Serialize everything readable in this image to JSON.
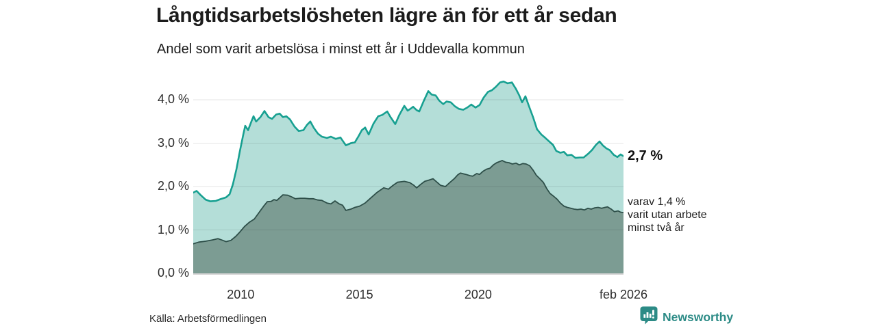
{
  "chart_data": {
    "type": "area",
    "title": "Långtidsarbetslösheten lägre än för ett år sedan",
    "subtitle": "Andel som varit arbetslösa i minst ett år i Uddevalla kommun",
    "unit": "percent",
    "legend": "none",
    "grid": true,
    "grid_color": "#e5e5e5",
    "axis_line_color": "#c2c2c2",
    "x_axis": {
      "range_years": [
        2008.0,
        2026.12
      ],
      "ticks": [
        {
          "label": "2010",
          "year": 2010
        },
        {
          "label": "2015",
          "year": 2015
        },
        {
          "label": "2020",
          "year": 2020
        },
        {
          "label": "feb 2026",
          "year": 2026.12
        }
      ]
    },
    "y_axis": {
      "range": [
        0,
        4.75
      ],
      "ticks": [
        {
          "label": "0,0 %",
          "value": 0
        },
        {
          "label": "1,0 %",
          "value": 1
        },
        {
          "label": "2,0 %",
          "value": 2
        },
        {
          "label": "3,0 %",
          "value": 3
        },
        {
          "label": "4,0 %",
          "value": 4
        }
      ]
    },
    "series": [
      {
        "name": "Arbetslösa minst ett år",
        "line_color": "#17a091",
        "fill_color": "#b4ded8",
        "line_width": 2.6,
        "latest_value": "2,7 %",
        "points": [
          [
            2008.0,
            1.86
          ],
          [
            2008.14,
            1.9
          ],
          [
            2008.32,
            1.8
          ],
          [
            2008.52,
            1.7
          ],
          [
            2008.72,
            1.66
          ],
          [
            2008.95,
            1.67
          ],
          [
            2009.15,
            1.71
          ],
          [
            2009.38,
            1.75
          ],
          [
            2009.53,
            1.82
          ],
          [
            2009.67,
            2.05
          ],
          [
            2009.82,
            2.4
          ],
          [
            2009.96,
            2.8
          ],
          [
            2010.11,
            3.2
          ],
          [
            2010.19,
            3.4
          ],
          [
            2010.31,
            3.3
          ],
          [
            2010.45,
            3.5
          ],
          [
            2010.54,
            3.62
          ],
          [
            2010.65,
            3.5
          ],
          [
            2010.83,
            3.6
          ],
          [
            2011.0,
            3.74
          ],
          [
            2011.17,
            3.6
          ],
          [
            2011.32,
            3.56
          ],
          [
            2011.49,
            3.66
          ],
          [
            2011.64,
            3.68
          ],
          [
            2011.78,
            3.6
          ],
          [
            2011.92,
            3.62
          ],
          [
            2012.07,
            3.55
          ],
          [
            2012.27,
            3.38
          ],
          [
            2012.44,
            3.28
          ],
          [
            2012.64,
            3.3
          ],
          [
            2012.79,
            3.42
          ],
          [
            2012.93,
            3.5
          ],
          [
            2013.08,
            3.35
          ],
          [
            2013.25,
            3.22
          ],
          [
            2013.42,
            3.15
          ],
          [
            2013.63,
            3.12
          ],
          [
            2013.8,
            3.15
          ],
          [
            2014.0,
            3.1
          ],
          [
            2014.2,
            3.13
          ],
          [
            2014.43,
            2.95
          ],
          [
            2014.64,
            3.0
          ],
          [
            2014.81,
            3.02
          ],
          [
            2014.95,
            3.15
          ],
          [
            2015.1,
            3.3
          ],
          [
            2015.24,
            3.36
          ],
          [
            2015.39,
            3.2
          ],
          [
            2015.59,
            3.45
          ],
          [
            2015.79,
            3.62
          ],
          [
            2015.96,
            3.65
          ],
          [
            2016.17,
            3.73
          ],
          [
            2016.31,
            3.6
          ],
          [
            2016.51,
            3.44
          ],
          [
            2016.68,
            3.65
          ],
          [
            2016.89,
            3.86
          ],
          [
            2017.03,
            3.75
          ],
          [
            2017.17,
            3.8
          ],
          [
            2017.26,
            3.84
          ],
          [
            2017.41,
            3.76
          ],
          [
            2017.52,
            3.73
          ],
          [
            2017.69,
            3.95
          ],
          [
            2017.9,
            4.2
          ],
          [
            2018.04,
            4.12
          ],
          [
            2018.21,
            4.1
          ],
          [
            2018.36,
            3.98
          ],
          [
            2018.53,
            3.9
          ],
          [
            2018.67,
            3.96
          ],
          [
            2018.85,
            3.94
          ],
          [
            2019.02,
            3.85
          ],
          [
            2019.19,
            3.79
          ],
          [
            2019.37,
            3.77
          ],
          [
            2019.54,
            3.82
          ],
          [
            2019.71,
            3.89
          ],
          [
            2019.89,
            3.82
          ],
          [
            2020.06,
            3.88
          ],
          [
            2020.23,
            4.05
          ],
          [
            2020.41,
            4.18
          ],
          [
            2020.58,
            4.22
          ],
          [
            2020.75,
            4.3
          ],
          [
            2020.92,
            4.4
          ],
          [
            2021.07,
            4.42
          ],
          [
            2021.24,
            4.38
          ],
          [
            2021.42,
            4.4
          ],
          [
            2021.59,
            4.25
          ],
          [
            2021.73,
            4.1
          ],
          [
            2021.85,
            3.94
          ],
          [
            2021.99,
            4.08
          ],
          [
            2022.14,
            3.85
          ],
          [
            2022.31,
            3.6
          ],
          [
            2022.48,
            3.32
          ],
          [
            2022.66,
            3.2
          ],
          [
            2022.83,
            3.12
          ],
          [
            2022.97,
            3.05
          ],
          [
            2023.15,
            2.96
          ],
          [
            2023.29,
            2.82
          ],
          [
            2023.46,
            2.78
          ],
          [
            2023.61,
            2.8
          ],
          [
            2023.75,
            2.72
          ],
          [
            2023.93,
            2.73
          ],
          [
            2024.1,
            2.66
          ],
          [
            2024.27,
            2.67
          ],
          [
            2024.44,
            2.67
          ],
          [
            2024.62,
            2.75
          ],
          [
            2024.79,
            2.84
          ],
          [
            2024.96,
            2.96
          ],
          [
            2025.11,
            3.04
          ],
          [
            2025.25,
            2.95
          ],
          [
            2025.4,
            2.88
          ],
          [
            2025.54,
            2.84
          ],
          [
            2025.71,
            2.73
          ],
          [
            2025.86,
            2.68
          ],
          [
            2026.0,
            2.74
          ],
          [
            2026.12,
            2.7
          ]
        ]
      },
      {
        "name": "Utan arbete minst två år",
        "line_color": "#2e4f49",
        "fill_color": "#7c9c93",
        "line_width": 1.8,
        "latest_value": "1,4 %",
        "points": [
          [
            2008.0,
            0.68
          ],
          [
            2008.23,
            0.72
          ],
          [
            2008.52,
            0.74
          ],
          [
            2008.81,
            0.77
          ],
          [
            2009.04,
            0.8
          ],
          [
            2009.24,
            0.76
          ],
          [
            2009.38,
            0.73
          ],
          [
            2009.59,
            0.76
          ],
          [
            2009.79,
            0.85
          ],
          [
            2009.96,
            0.95
          ],
          [
            2010.16,
            1.08
          ],
          [
            2010.37,
            1.18
          ],
          [
            2010.57,
            1.25
          ],
          [
            2010.77,
            1.4
          ],
          [
            2010.97,
            1.55
          ],
          [
            2011.12,
            1.65
          ],
          [
            2011.29,
            1.66
          ],
          [
            2011.4,
            1.7
          ],
          [
            2011.52,
            1.68
          ],
          [
            2011.66,
            1.75
          ],
          [
            2011.78,
            1.81
          ],
          [
            2011.98,
            1.8
          ],
          [
            2012.15,
            1.76
          ],
          [
            2012.3,
            1.72
          ],
          [
            2012.5,
            1.73
          ],
          [
            2012.7,
            1.73
          ],
          [
            2012.88,
            1.72
          ],
          [
            2013.05,
            1.72
          ],
          [
            2013.25,
            1.69
          ],
          [
            2013.42,
            1.68
          ],
          [
            2013.63,
            1.62
          ],
          [
            2013.8,
            1.6
          ],
          [
            2013.97,
            1.67
          ],
          [
            2014.15,
            1.6
          ],
          [
            2014.29,
            1.57
          ],
          [
            2014.43,
            1.45
          ],
          [
            2014.64,
            1.48
          ],
          [
            2014.81,
            1.52
          ],
          [
            2015.01,
            1.55
          ],
          [
            2015.24,
            1.62
          ],
          [
            2015.44,
            1.72
          ],
          [
            2015.73,
            1.86
          ],
          [
            2016.02,
            1.97
          ],
          [
            2016.22,
            1.94
          ],
          [
            2016.42,
            2.03
          ],
          [
            2016.6,
            2.1
          ],
          [
            2016.89,
            2.12
          ],
          [
            2017.12,
            2.09
          ],
          [
            2017.29,
            2.03
          ],
          [
            2017.41,
            1.97
          ],
          [
            2017.58,
            2.05
          ],
          [
            2017.75,
            2.12
          ],
          [
            2017.93,
            2.15
          ],
          [
            2018.1,
            2.18
          ],
          [
            2018.27,
            2.1
          ],
          [
            2018.41,
            2.03
          ],
          [
            2018.62,
            2.0
          ],
          [
            2018.82,
            2.1
          ],
          [
            2018.99,
            2.18
          ],
          [
            2019.14,
            2.27
          ],
          [
            2019.25,
            2.31
          ],
          [
            2019.48,
            2.28
          ],
          [
            2019.66,
            2.25
          ],
          [
            2019.77,
            2.24
          ],
          [
            2019.94,
            2.3
          ],
          [
            2020.06,
            2.28
          ],
          [
            2020.2,
            2.35
          ],
          [
            2020.35,
            2.4
          ],
          [
            2020.49,
            2.42
          ],
          [
            2020.64,
            2.5
          ],
          [
            2020.78,
            2.55
          ],
          [
            2020.92,
            2.58
          ],
          [
            2021.01,
            2.6
          ],
          [
            2021.16,
            2.56
          ],
          [
            2021.3,
            2.55
          ],
          [
            2021.44,
            2.52
          ],
          [
            2021.59,
            2.54
          ],
          [
            2021.73,
            2.5
          ],
          [
            2021.88,
            2.53
          ],
          [
            2022.02,
            2.52
          ],
          [
            2022.17,
            2.48
          ],
          [
            2022.31,
            2.38
          ],
          [
            2022.45,
            2.26
          ],
          [
            2022.6,
            2.18
          ],
          [
            2022.74,
            2.1
          ],
          [
            2022.89,
            1.95
          ],
          [
            2023.03,
            1.84
          ],
          [
            2023.17,
            1.78
          ],
          [
            2023.32,
            1.71
          ],
          [
            2023.46,
            1.62
          ],
          [
            2023.61,
            1.55
          ],
          [
            2023.75,
            1.52
          ],
          [
            2023.9,
            1.5
          ],
          [
            2024.04,
            1.48
          ],
          [
            2024.18,
            1.47
          ],
          [
            2024.33,
            1.48
          ],
          [
            2024.47,
            1.46
          ],
          [
            2024.62,
            1.5
          ],
          [
            2024.76,
            1.48
          ],
          [
            2024.91,
            1.51
          ],
          [
            2025.05,
            1.52
          ],
          [
            2025.2,
            1.5
          ],
          [
            2025.34,
            1.52
          ],
          [
            2025.45,
            1.53
          ],
          [
            2025.6,
            1.48
          ],
          [
            2025.74,
            1.42
          ],
          [
            2025.89,
            1.44
          ],
          [
            2026.0,
            1.41
          ],
          [
            2026.12,
            1.4
          ]
        ]
      }
    ]
  },
  "annotation": {
    "value": "2,7 %",
    "detail_lines": [
      "varav 1,4 %",
      "varit utan arbete",
      "minst två år"
    ]
  },
  "footer": {
    "source": "Källa: Arbetsförmedlingen",
    "brand_name": "Newsworthy",
    "brand_color": "#2c8b86"
  }
}
